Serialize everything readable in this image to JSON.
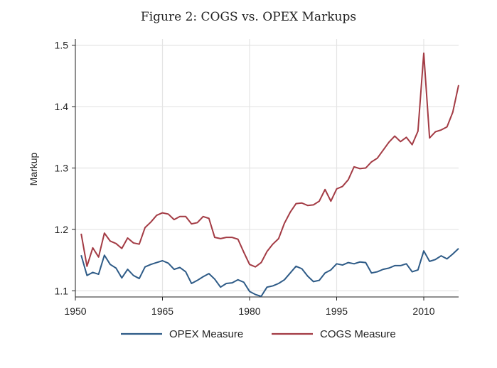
{
  "chart_data": {
    "type": "line",
    "title": "Figure 2: COGS vs. OPEX Markups",
    "ylabel": "Markup",
    "xlabel": "",
    "xlim": [
      1950,
      2016
    ],
    "ylim": [
      1.09,
      1.51
    ],
    "xticks": [
      1950,
      1965,
      1980,
      1995,
      2010
    ],
    "yticks": [
      1.1,
      1.2,
      1.3,
      1.4,
      1.5
    ],
    "ytick_labels": [
      "1.1",
      "1.2",
      "1.3",
      "1.4",
      "1.5"
    ],
    "grid": true,
    "legend_position": "bottom",
    "x": [
      1951,
      1952,
      1953,
      1954,
      1955,
      1956,
      1957,
      1958,
      1959,
      1960,
      1961,
      1962,
      1963,
      1964,
      1965,
      1966,
      1967,
      1968,
      1969,
      1970,
      1971,
      1972,
      1973,
      1974,
      1975,
      1976,
      1977,
      1978,
      1979,
      1980,
      1981,
      1982,
      1983,
      1984,
      1985,
      1986,
      1987,
      1988,
      1989,
      1990,
      1991,
      1992,
      1993,
      1994,
      1995,
      1996,
      1997,
      1998,
      1999,
      2000,
      2001,
      2002,
      2003,
      2004,
      2005,
      2006,
      2007,
      2008,
      2009,
      2010,
      2011,
      2012,
      2013,
      2014,
      2015,
      2016
    ],
    "series": [
      {
        "name": "OPEX Measure",
        "color": "#2e5b87",
        "values": [
          1.158,
          1.125,
          1.13,
          1.127,
          1.158,
          1.143,
          1.137,
          1.121,
          1.135,
          1.125,
          1.12,
          1.139,
          1.143,
          1.146,
          1.149,
          1.145,
          1.135,
          1.138,
          1.131,
          1.112,
          1.117,
          1.123,
          1.128,
          1.119,
          1.106,
          1.112,
          1.113,
          1.118,
          1.114,
          1.099,
          1.094,
          1.091,
          1.106,
          1.108,
          1.112,
          1.118,
          1.129,
          1.14,
          1.136,
          1.124,
          1.115,
          1.117,
          1.129,
          1.134,
          1.144,
          1.142,
          1.146,
          1.144,
          1.147,
          1.146,
          1.129,
          1.131,
          1.135,
          1.137,
          1.141,
          1.141,
          1.144,
          1.131,
          1.134,
          1.165,
          1.148,
          1.151,
          1.157,
          1.152,
          1.16,
          1.169
        ]
      },
      {
        "name": "COGS Measure",
        "color": "#a33b44",
        "values": [
          1.193,
          1.14,
          1.17,
          1.155,
          1.194,
          1.181,
          1.177,
          1.169,
          1.186,
          1.178,
          1.176,
          1.203,
          1.212,
          1.223,
          1.227,
          1.225,
          1.216,
          1.221,
          1.221,
          1.209,
          1.211,
          1.221,
          1.218,
          1.187,
          1.185,
          1.187,
          1.187,
          1.184,
          1.163,
          1.143,
          1.139,
          1.146,
          1.164,
          1.176,
          1.185,
          1.21,
          1.228,
          1.242,
          1.243,
          1.239,
          1.24,
          1.246,
          1.265,
          1.246,
          1.266,
          1.27,
          1.281,
          1.302,
          1.299,
          1.3,
          1.31,
          1.316,
          1.329,
          1.342,
          1.352,
          1.343,
          1.35,
          1.338,
          1.36,
          1.487,
          1.349,
          1.359,
          1.362,
          1.367,
          1.391,
          1.435
        ]
      }
    ]
  }
}
